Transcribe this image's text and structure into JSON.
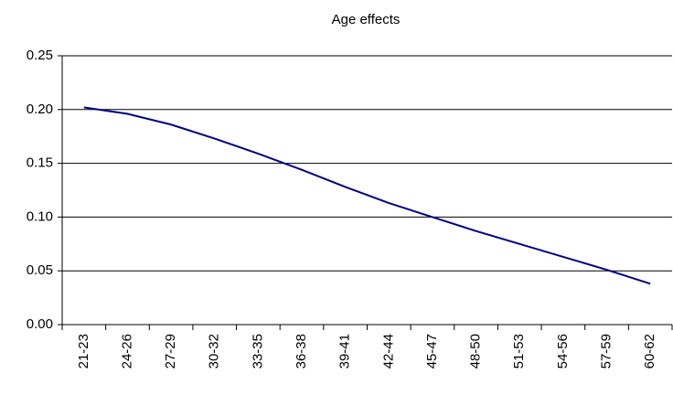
{
  "chart_data": {
    "type": "line",
    "title": "Age effects",
    "categories": [
      "21-23",
      "24-26",
      "27-29",
      "30-32",
      "33-35",
      "36-38",
      "39-41",
      "42-44",
      "45-47",
      "48-50",
      "51-53",
      "54-56",
      "57-59",
      "60-62"
    ],
    "series": [
      {
        "name": "Age effects",
        "color": "#000080",
        "values": [
          0.202,
          0.196,
          0.186,
          0.173,
          0.159,
          0.144,
          0.128,
          0.113,
          0.1,
          0.087,
          0.075,
          0.063,
          0.051,
          0.038
        ]
      }
    ],
    "ylim": [
      0,
      0.25
    ],
    "yticks": [
      {
        "value": 0,
        "label": "0.00"
      },
      {
        "value": 0.05,
        "label": "0.05"
      },
      {
        "value": 0.1,
        "label": "0.10"
      },
      {
        "value": 0.15,
        "label": "0.15"
      },
      {
        "value": 0.2,
        "label": "0.20"
      },
      {
        "value": 0.25,
        "label": "0.25"
      }
    ],
    "grid": true
  }
}
